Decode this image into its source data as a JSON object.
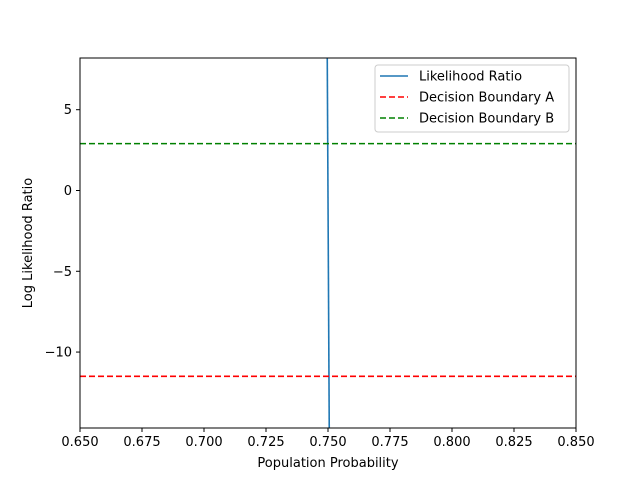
{
  "chart_data": {
    "type": "line",
    "title": "",
    "xlabel": "Population Probability",
    "ylabel": "Log Likelihood Ratio",
    "xlim": [
      0.65,
      0.85
    ],
    "ylim": [
      -14.7,
      8.2
    ],
    "x_ticks": [
      0.65,
      0.675,
      0.7,
      0.725,
      0.75,
      0.775,
      0.8,
      0.825,
      0.85
    ],
    "x_tick_labels": [
      "0.650",
      "0.675",
      "0.700",
      "0.725",
      "0.750",
      "0.775",
      "0.800",
      "0.825",
      "0.850"
    ],
    "y_ticks": [
      5,
      0,
      -5,
      -10
    ],
    "y_tick_labels": [
      "5",
      "0",
      "−5",
      "−10"
    ],
    "grid": false,
    "legend_position": "upper right",
    "series": [
      {
        "name": "Likelihood Ratio",
        "color": "#1f77b4",
        "style": "solid",
        "x": [
          0.7497,
          0.7505
        ],
        "y": [
          8.2,
          -14.7
        ]
      },
      {
        "name": "Decision Boundary A",
        "color": "#ff0000",
        "style": "dashed",
        "y_const": -11.5
      },
      {
        "name": "Decision Boundary B",
        "color": "#008000",
        "style": "dashed",
        "y_const": 2.9
      }
    ]
  }
}
